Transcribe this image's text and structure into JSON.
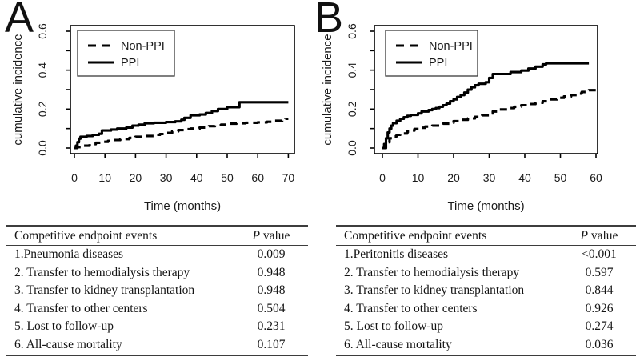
{
  "figure": {
    "background": "#ffffff",
    "line_color": "#000000",
    "rule_color": "#3d3d3d",
    "text_color": "#141414"
  },
  "chart_data": [
    {
      "type": "line",
      "subtype": "step-cumulative-incidence",
      "panel_label": "A",
      "title": "",
      "xlabel": "Time (months)",
      "ylabel": "cumulative incidence",
      "xlim": [
        0,
        70
      ],
      "ylim": [
        0,
        0.6
      ],
      "grid": false,
      "x_ticks": [
        0,
        10,
        20,
        30,
        40,
        50,
        60,
        70
      ],
      "x_tick_labels": [
        "0",
        "10",
        "20",
        "30",
        "40",
        "50",
        "60",
        "70"
      ],
      "y_major_ticks": [
        {
          "value": 0.0,
          "label": "0.0"
        },
        {
          "value": 0.2,
          "label": "0.2"
        },
        {
          "value": 0.4,
          "label": "0.4"
        },
        {
          "value": 0.6,
          "label": "0.6"
        }
      ],
      "y_minor_ticks": [
        0.1,
        0.3,
        0.5
      ],
      "legend": {
        "position": "top-left",
        "entries": [
          {
            "name": "Non-PPI",
            "style": "dashed"
          },
          {
            "name": "PPI",
            "style": "solid"
          }
        ]
      },
      "series": [
        {
          "name": "Non-PPI",
          "style": "dashed",
          "points": [
            [
              0,
              0
            ],
            [
              1,
              0.005
            ],
            [
              3,
              0.012
            ],
            [
              5,
              0.02
            ],
            [
              7,
              0.027
            ],
            [
              9,
              0.032
            ],
            [
              11,
              0.037
            ],
            [
              13,
              0.041
            ],
            [
              15,
              0.046
            ],
            [
              18,
              0.052
            ],
            [
              20,
              0.058
            ],
            [
              23,
              0.062
            ],
            [
              26,
              0.068
            ],
            [
              28,
              0.072
            ],
            [
              30,
              0.078
            ],
            [
              32,
              0.086
            ],
            [
              34,
              0.092
            ],
            [
              36,
              0.097
            ],
            [
              38,
              0.1
            ],
            [
              41,
              0.105
            ],
            [
              44,
              0.112
            ],
            [
              46,
              0.117
            ],
            [
              48,
              0.12
            ],
            [
              50,
              0.125
            ],
            [
              53,
              0.127
            ],
            [
              56,
              0.13
            ],
            [
              60,
              0.132
            ],
            [
              63,
              0.135
            ],
            [
              65,
              0.14
            ],
            [
              68,
              0.145
            ],
            [
              69,
              0.15
            ],
            [
              70,
              0.15
            ]
          ]
        },
        {
          "name": "PPI",
          "style": "solid",
          "points": [
            [
              0,
              0
            ],
            [
              0.5,
              0.012
            ],
            [
              1,
              0.03
            ],
            [
              1.5,
              0.048
            ],
            [
              2,
              0.058
            ],
            [
              4,
              0.062
            ],
            [
              6,
              0.068
            ],
            [
              8,
              0.073
            ],
            [
              9,
              0.09
            ],
            [
              12,
              0.095
            ],
            [
              14,
              0.1
            ],
            [
              17,
              0.105
            ],
            [
              19,
              0.115
            ],
            [
              21,
              0.12
            ],
            [
              23,
              0.127
            ],
            [
              26,
              0.13
            ],
            [
              30,
              0.133
            ],
            [
              33,
              0.137
            ],
            [
              35,
              0.145
            ],
            [
              36,
              0.155
            ],
            [
              38,
              0.168
            ],
            [
              41,
              0.172
            ],
            [
              43,
              0.18
            ],
            [
              45,
              0.19
            ],
            [
              47,
              0.2
            ],
            [
              50,
              0.21
            ],
            [
              54,
              0.235
            ],
            [
              70,
              0.235
            ]
          ]
        }
      ]
    },
    {
      "type": "line",
      "subtype": "step-cumulative-incidence",
      "panel_label": "B",
      "title": "",
      "xlabel": "Time (months)",
      "ylabel": "cumulative incidence",
      "xlim": [
        0,
        60
      ],
      "ylim": [
        0,
        0.6
      ],
      "grid": false,
      "x_ticks": [
        0,
        10,
        20,
        30,
        40,
        50,
        60
      ],
      "x_tick_labels": [
        "0",
        "10",
        "20",
        "30",
        "40",
        "50",
        "60"
      ],
      "y_major_ticks": [
        {
          "value": 0.0,
          "label": "0.0"
        },
        {
          "value": 0.2,
          "label": "0.2"
        },
        {
          "value": 0.4,
          "label": "0.4"
        },
        {
          "value": 0.6,
          "label": "0.6"
        }
      ],
      "y_minor_ticks": [
        0.1,
        0.3,
        0.5
      ],
      "legend": {
        "position": "top-left",
        "entries": [
          {
            "name": "Non-PPI",
            "style": "dashed"
          },
          {
            "name": "PPI",
            "style": "solid"
          }
        ]
      },
      "series": [
        {
          "name": "Non-PPI",
          "style": "dashed",
          "points": [
            [
              0,
              0
            ],
            [
              1,
              0.03
            ],
            [
              2,
              0.05
            ],
            [
              3,
              0.06
            ],
            [
              4,
              0.068
            ],
            [
              5,
              0.075
            ],
            [
              7,
              0.085
            ],
            [
              8,
              0.09
            ],
            [
              9,
              0.098
            ],
            [
              11,
              0.104
            ],
            [
              12,
              0.11
            ],
            [
              14,
              0.115
            ],
            [
              16,
              0.12
            ],
            [
              17,
              0.125
            ],
            [
              19,
              0.13
            ],
            [
              20,
              0.138
            ],
            [
              22,
              0.145
            ],
            [
              24,
              0.152
            ],
            [
              26,
              0.16
            ],
            [
              28,
              0.168
            ],
            [
              30,
              0.178
            ],
            [
              31,
              0.188
            ],
            [
              33,
              0.198
            ],
            [
              35,
              0.205
            ],
            [
              37,
              0.212
            ],
            [
              39,
              0.22
            ],
            [
              41,
              0.226
            ],
            [
              43,
              0.232
            ],
            [
              45,
              0.24
            ],
            [
              47,
              0.25
            ],
            [
              49,
              0.258
            ],
            [
              51,
              0.265
            ],
            [
              53,
              0.272
            ],
            [
              55,
              0.28
            ],
            [
              56,
              0.288
            ],
            [
              58,
              0.297
            ],
            [
              60,
              0.3
            ]
          ]
        },
        {
          "name": "PPI",
          "style": "solid",
          "points": [
            [
              0,
              0
            ],
            [
              0.5,
              0.02
            ],
            [
              1,
              0.05
            ],
            [
              1.5,
              0.08
            ],
            [
              2,
              0.1
            ],
            [
              2.5,
              0.115
            ],
            [
              3,
              0.128
            ],
            [
              4,
              0.14
            ],
            [
              5,
              0.15
            ],
            [
              6,
              0.158
            ],
            [
              7,
              0.165
            ],
            [
              8,
              0.17
            ],
            [
              10,
              0.178
            ],
            [
              11,
              0.188
            ],
            [
              13,
              0.195
            ],
            [
              14,
              0.2
            ],
            [
              15,
              0.205
            ],
            [
              16,
              0.212
            ],
            [
              17,
              0.22
            ],
            [
              18,
              0.228
            ],
            [
              19,
              0.24
            ],
            [
              20,
              0.25
            ],
            [
              21,
              0.262
            ],
            [
              22,
              0.272
            ],
            [
              23,
              0.285
            ],
            [
              24,
              0.3
            ],
            [
              25,
              0.312
            ],
            [
              26,
              0.322
            ],
            [
              27,
              0.33
            ],
            [
              29,
              0.338
            ],
            [
              30,
              0.36
            ],
            [
              31,
              0.38
            ],
            [
              36,
              0.39
            ],
            [
              39,
              0.398
            ],
            [
              41,
              0.408
            ],
            [
              43,
              0.418
            ],
            [
              45,
              0.43
            ],
            [
              46,
              0.435
            ],
            [
              58,
              0.435
            ]
          ]
        }
      ]
    }
  ],
  "tables": [
    {
      "header": {
        "events": "Competitive endpoint events",
        "p_italic": "P",
        "p_rest": " value"
      },
      "rows": [
        {
          "event": "1.Pneumonia diseases",
          "p": "0.009"
        },
        {
          "event": "2. Transfer to hemodialysis therapy",
          "p": "0.948"
        },
        {
          "event": "3. Transfer to kidney transplantation",
          "p": "0.948"
        },
        {
          "event": "4. Transfer to other centers",
          "p": "0.504"
        },
        {
          "event": "5. Lost to follow-up",
          "p": "0.231"
        },
        {
          "event": "6. All-cause mortality",
          "p": "0.107"
        }
      ]
    },
    {
      "header": {
        "events": "Competitive endpoint events",
        "p_italic": "P",
        "p_rest": " value"
      },
      "rows": [
        {
          "event": "1.Peritonitis diseases",
          "p": "<0.001"
        },
        {
          "event": "2. Transfer to hemodialysis therapy",
          "p": "0.597"
        },
        {
          "event": "3. Transfer to kidney transplantation",
          "p": "0.844"
        },
        {
          "event": "4. Transfer to other centers",
          "p": "0.926"
        },
        {
          "event": "5. Lost to follow-up",
          "p": "0.274"
        },
        {
          "event": "6. All-cause mortality",
          "p": "0.036"
        }
      ]
    }
  ]
}
